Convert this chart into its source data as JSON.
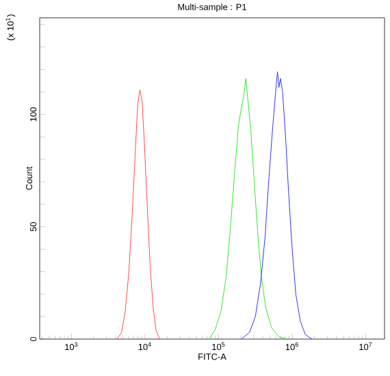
{
  "chart_data": {
    "type": "line",
    "title": "Multi-sample : P1",
    "xlabel": "FITC-A",
    "ylabel": "Count",
    "annotations": [
      "(x 10$^{1}$)"
    ],
    "log": "x",
    "grid": false,
    "marker": "none",
    "line_style": "solid",
    "xlim": [
      370,
      18000000
    ],
    "xticks": [
      {
        "value": 1000,
        "label": "10$^{3}$"
      },
      {
        "value": 10000,
        "label": "10$^{4}$"
      },
      {
        "value": 100000,
        "label": "10$^{5}$"
      },
      {
        "value": 1000000,
        "label": "10$^{6}$"
      },
      {
        "value": 10000000,
        "label": "10$^{7}$"
      }
    ],
    "ylim": [
      0,
      143
    ],
    "yticks": [
      0,
      {
        "value": 10,
        "label": null
      },
      {
        "value": 20,
        "label": null
      },
      {
        "value": 30,
        "label": null
      },
      {
        "value": 40,
        "label": null
      },
      50,
      {
        "value": 60,
        "label": null
      },
      {
        "value": 70,
        "label": null
      },
      {
        "value": 80,
        "label": null
      },
      {
        "value": 90,
        "label": null
      },
      100,
      {
        "value": 110,
        "label": null
      },
      {
        "value": 120,
        "label": null
      },
      {
        "value": 130,
        "label": null
      },
      {
        "value": 140,
        "label": null
      }
    ],
    "series": [
      {
        "color": "#ff4a4a",
        "x": [
          4170,
          4790,
          5370,
          6030,
          6760,
          7410,
          7940,
          8510,
          9120,
          9770,
          10700,
          11700,
          12900,
          14100,
          15800
        ],
        "values": [
          0,
          3,
          12,
          30,
          58,
          85,
          104,
          111,
          106,
          88,
          60,
          33,
          14,
          4,
          0
        ]
      },
      {
        "color": "#33e633",
        "x": [
          74100,
          89100,
          107000,
          126000,
          145000,
          166000,
          186000,
          204000,
          219000,
          234000,
          251000,
          275000,
          302000,
          339000,
          380000,
          437000,
          525000,
          661000,
          851000
        ],
        "values": [
          0,
          4,
          12,
          27,
          50,
          75,
          95,
          103,
          108,
          116,
          106,
          92,
          72,
          48,
          28,
          14,
          5,
          1,
          0
        ]
      },
      {
        "color": "#3333ff",
        "x": [
          204000,
          263000,
          316000,
          372000,
          427000,
          479000,
          537000,
          589000,
          631000,
          661000,
          692000,
          741000,
          813000,
          891000,
          1000000,
          1120000,
          1290000,
          1510000,
          1860000
        ],
        "values": [
          0,
          3,
          10,
          25,
          45,
          70,
          92,
          108,
          119,
          112,
          116,
          110,
          90,
          66,
          40,
          20,
          8,
          2,
          0
        ]
      }
    ]
  }
}
